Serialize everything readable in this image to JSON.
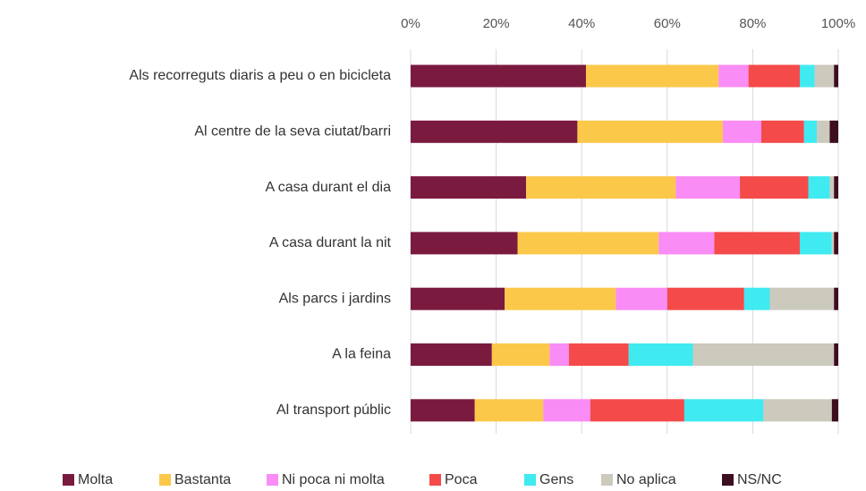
{
  "chart_data": {
    "type": "stacked_bar_horizontal",
    "categories": [
      "Als recorreguts diaris a peu o en bicicleta",
      "Al centre de la seva ciutat/barri",
      "A casa durant el dia",
      "A casa durant la nit",
      "Als parcs i jardins",
      "A la feina",
      "Al transport públic"
    ],
    "series": [
      {
        "name": "Molta",
        "color": "#7b1a3f",
        "values": [
          41,
          39,
          27,
          25,
          22,
          19,
          15
        ]
      },
      {
        "name": "Bastanta",
        "color": "#fcc84a",
        "values": [
          31,
          34,
          35,
          33,
          26,
          13.5,
          16
        ]
      },
      {
        "name": "Ni poca ni molta",
        "color": "#f98cf5",
        "values": [
          7,
          9,
          15,
          13,
          12,
          4.5,
          11
        ]
      },
      {
        "name": "Poca",
        "color": "#f44a4a",
        "values": [
          12,
          10,
          16,
          20,
          18,
          14,
          22
        ]
      },
      {
        "name": "Gens",
        "color": "#3feaf0",
        "values": [
          3.5,
          3,
          5,
          7.5,
          6,
          15,
          18.5
        ]
      },
      {
        "name": "No aplica",
        "color": "#ccc9bd",
        "values": [
          4.5,
          3,
          1,
          0.5,
          15,
          33,
          16
        ]
      },
      {
        "name": "NS/NC",
        "color": "#3d0d20",
        "values": [
          1,
          2,
          1,
          1,
          1,
          1,
          1.5
        ]
      }
    ],
    "xlim": [
      0,
      100
    ],
    "xticks": [
      {
        "value": 0,
        "label": "0%"
      },
      {
        "value": 20,
        "label": "20%"
      },
      {
        "value": 40,
        "label": "40%"
      },
      {
        "value": 60,
        "label": "60%"
      },
      {
        "value": 80,
        "label": "80%"
      },
      {
        "value": 100,
        "label": "100%"
      }
    ],
    "grid": true,
    "legend": "bottom"
  }
}
